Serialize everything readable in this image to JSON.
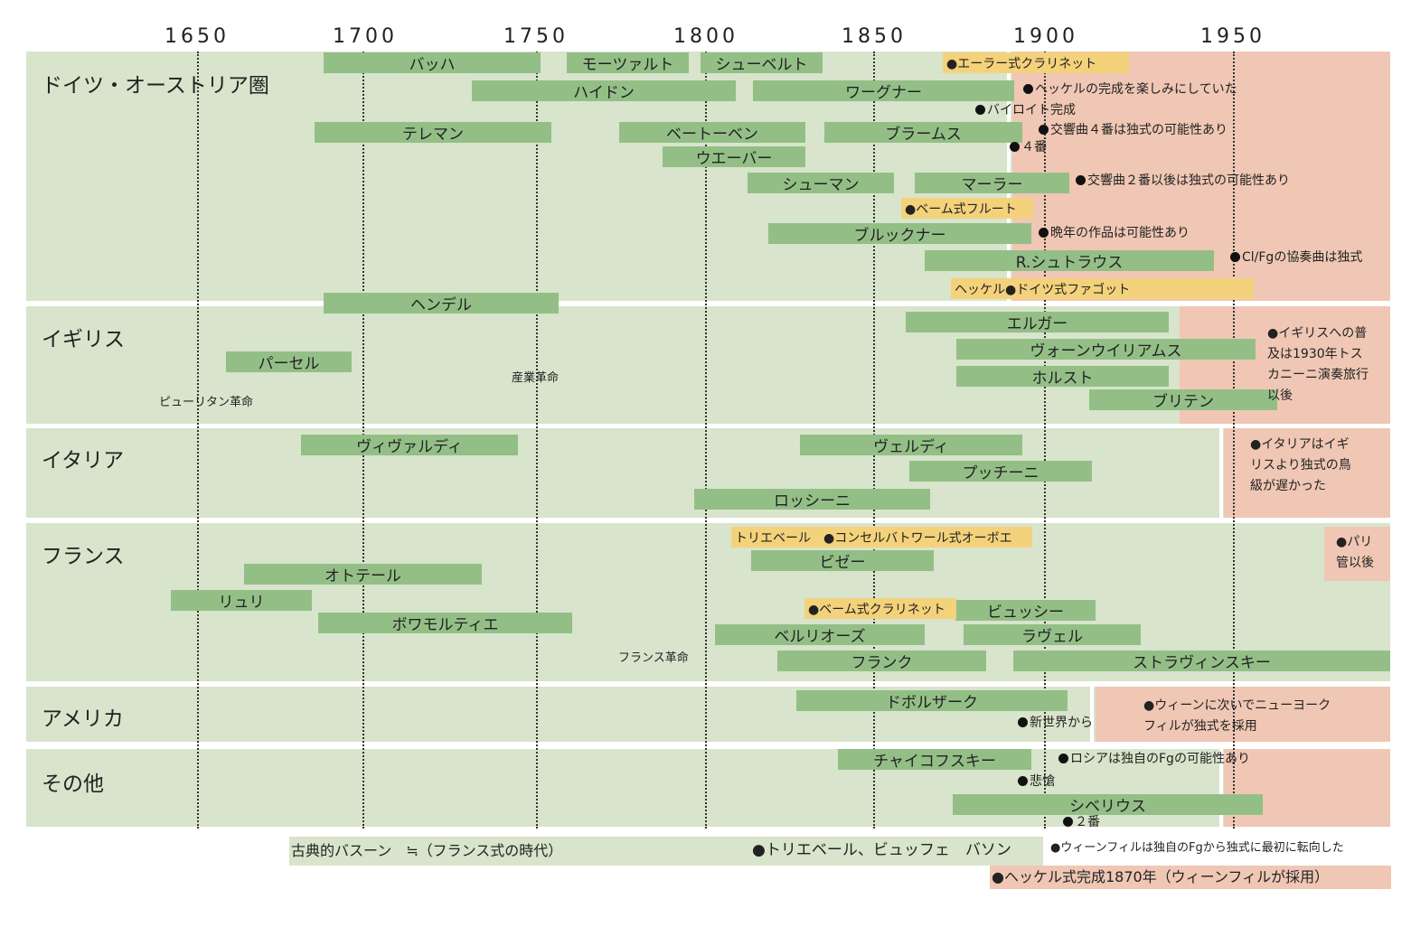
{
  "axis": {
    "ticks": [
      "1650",
      "1700",
      "1750",
      "1800",
      "1850",
      "1900",
      "1950"
    ]
  },
  "regions": [
    {
      "id": "germany",
      "label": "ドイツ・オーストリア圏"
    },
    {
      "id": "england",
      "label": "イギリス"
    },
    {
      "id": "italy",
      "label": "イタリア"
    },
    {
      "id": "france",
      "label": "フランス"
    },
    {
      "id": "america",
      "label": "アメリカ"
    },
    {
      "id": "other",
      "label": "その他"
    }
  ],
  "composers": {
    "bach": "バッハ",
    "mozart": "モーツァルト",
    "schubert": "シューベルト",
    "haydn": "ハイドン",
    "wagner": "ワーグナー",
    "telemann": "テレマン",
    "beethoven": "ベートーベン",
    "brahms": "ブラームス",
    "weber": "ウエーバー",
    "schumann": "シューマン",
    "mahler": "マーラー",
    "bruckner": "ブルックナー",
    "rstrauss": "R.シュトラウス",
    "handel": "ヘンデル",
    "elgar": "エルガー",
    "purcell": "パーセル",
    "vaughan": "ヴォーンウイリアムス",
    "holst": "ホルスト",
    "britten": "ブリテン",
    "vivaldi": "ヴィヴァルディ",
    "verdi": "ヴェルディ",
    "puccini": "プッチーニ",
    "rossini": "ロッシーニ",
    "hotteterre": "オトテール",
    "bizet": "ビゼー",
    "lully": "リュリ",
    "boismortier": "ボワモルティエ",
    "debussy": "ビュッシー",
    "berlioz": "ベルリオーズ",
    "ravel": "ラヴェル",
    "franck": "フランク",
    "stravinsky": "ストラヴィンスキー",
    "dvorak": "ドボルザーク",
    "tchaikovsky": "チャイコフスキー",
    "sibelius": "シベリウス"
  },
  "instruments": {
    "oehler": "●エーラー式クラリネット",
    "boehm_flute": "●ベーム式フルート",
    "heckel_fagott": "ヘッケル●ドイツ式ファゴット",
    "triebert": "トリエベール　●コンセルバトワール式オーボエ",
    "boehm_clarinet": "●ベーム式クラリネット"
  },
  "notes": {
    "heckel_wish": "ヘッケルの完成を楽しみにしていた",
    "bayreuth": "バイロイト完成",
    "sym4_brahms": "交響曲４番は独式の可能性あり",
    "no4": "４番",
    "mahler_sym2": "交響曲２番以後は独式の可能性あり",
    "bruckner_late": "晩年の作品は可能性あり",
    "cl_fg": "Cl/Fgの協奏曲は独式",
    "new_world": "新世界から",
    "russia": "ロシアは独自のFgの可能性あり",
    "pathetique": "悲愴",
    "no2": "２番"
  },
  "paragraphs": {
    "england": [
      "●イギリスへの普",
      "及は1930年トス",
      "カニーニ演奏旅行",
      "以後"
    ],
    "italy": [
      "●イタリアはイギ",
      "リスより独式の鳥",
      "級が遅かった"
    ],
    "france": [
      "●パリ",
      "管以後"
    ],
    "america": [
      "●ウィーンに次いでニューヨーク",
      "フィルが独式を採用"
    ]
  },
  "events": {
    "puritan": "ピューリタン革命",
    "industrial": "産業革命",
    "french_rev": "フランス革命"
  },
  "legend": {
    "classic": "古典的バスーン　≒（フランス式の時代）",
    "french_makers": "●トリエベール、ビュッフェ　バソン",
    "vienna_note": "●ウィーンフィルは独自のFgから独式に最初に転向した",
    "heckel_done": "●ヘッケル式完成1870年（ウィーンフィルが採用）"
  },
  "colors": {
    "band": "#d8e4cb",
    "pink": "#efc7b4",
    "bar": "#93bf87",
    "yellow": "#f4d27b"
  }
}
